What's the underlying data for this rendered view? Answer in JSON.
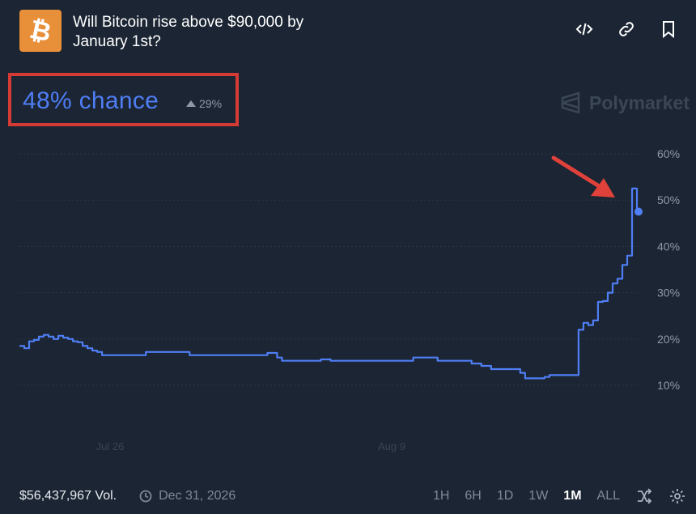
{
  "header": {
    "logo_symbol": "₿",
    "title": "Will Bitcoin rise above $90,000 by January 1st?",
    "actions": [
      {
        "name": "embed-icon"
      },
      {
        "name": "link-icon"
      },
      {
        "name": "bookmark-icon"
      }
    ]
  },
  "summary": {
    "chance_text": "48% chance",
    "delta_text": "29%"
  },
  "watermark": "Polymarket",
  "chart_data": {
    "type": "line",
    "yticks": [
      "60%",
      "50%",
      "40%",
      "30%",
      "20%",
      "10%"
    ],
    "ylim": [
      10,
      60
    ],
    "xticks": [
      "Jul 26",
      "Aug 9"
    ],
    "series": [
      {
        "color": "#4f7ef5",
        "values": [
          18.5,
          18,
          19.5,
          19.8,
          20.5,
          20.9,
          20.5,
          20,
          20.7,
          20.3,
          20,
          19.5,
          19.3,
          18.5,
          18,
          17.5,
          17.2,
          16.5,
          16.5,
          16.5,
          16.5,
          16.5,
          16.5,
          16.5,
          16.5,
          16.5,
          17.2,
          17.2,
          17.2,
          17.2,
          17.2,
          17.2,
          17.2,
          17.2,
          17.2,
          16.5,
          16.5,
          16.5,
          16.5,
          16.5,
          16.5,
          16.5,
          16.5,
          16.5,
          16.5,
          16.5,
          16.5,
          16.5,
          16.5,
          16.5,
          16.5,
          17,
          17,
          16,
          15.3,
          15.3,
          15.3,
          15.3,
          15.3,
          15.3,
          15.3,
          15.3,
          15.6,
          15.6,
          15.3,
          15.3,
          15.3,
          15.3,
          15.3,
          15.3,
          15.3,
          15.3,
          15.3,
          15.3,
          15.3,
          15.3,
          15.3,
          15.3,
          15.3,
          15.3,
          15.3,
          16,
          16,
          16,
          16,
          16,
          15.3,
          15.3,
          15.3,
          15.3,
          15.3,
          15.3,
          15.3,
          14.7,
          14.7,
          14.2,
          14.2,
          13.5,
          13.5,
          13.5,
          13.5,
          13.5,
          13.5,
          12.7,
          11.5,
          11.5,
          11.5,
          11.5,
          11.8,
          12.2,
          12.2,
          12.2,
          12.2,
          12.2,
          12.2,
          22,
          23.5,
          23,
          24,
          28,
          28.2,
          30,
          32,
          33,
          36,
          38,
          52.5,
          47.5
        ]
      }
    ]
  },
  "footer": {
    "volume": "$56,437,967 Vol.",
    "end_date": "Dec 31, 2026",
    "ranges": [
      "1H",
      "6H",
      "1D",
      "1W",
      "1M",
      "ALL"
    ],
    "active_range": "1M"
  },
  "annotations": {
    "highlight_color": "#d53b35"
  }
}
